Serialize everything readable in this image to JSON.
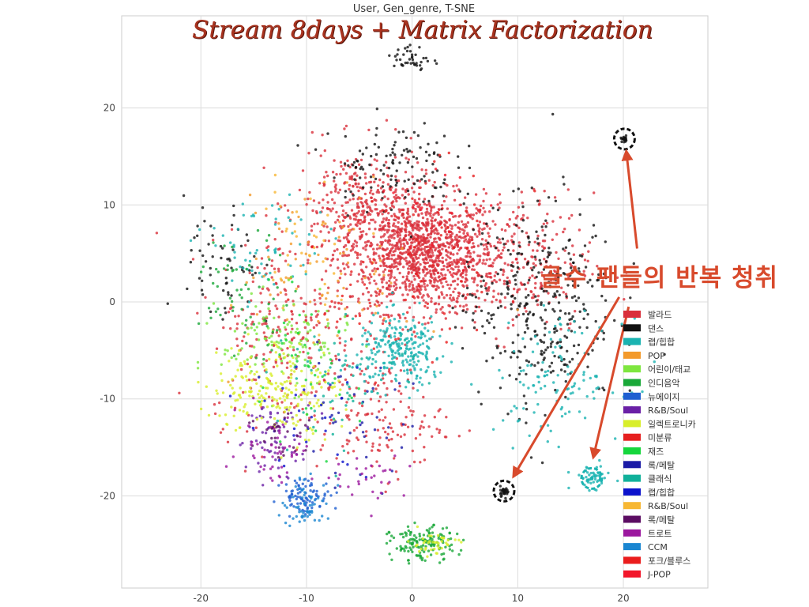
{
  "chart_data": {
    "type": "scatter",
    "title": "User, Gen_genre, T-SNE",
    "overlay_title": "Stream 8days + Matrix Factorization",
    "annotation": "골수 팬들의 반복 청취",
    "xlim": [
      -27.5,
      28
    ],
    "ylim": [
      -29.5,
      29.5
    ],
    "xticks": [
      -20,
      -10,
      0,
      10,
      20
    ],
    "yticks": [
      20,
      10,
      0,
      -10,
      -20
    ],
    "grid": true,
    "legend_placement": "lower-right",
    "series": [
      {
        "name": "발라드",
        "color": "#d92f3b",
        "clusters": [
          {
            "x": 1,
            "y": 5,
            "sx": 6,
            "sy": 5,
            "n": 1200
          },
          {
            "x": -5,
            "y": 10,
            "sx": 5,
            "sy": 5,
            "n": 300
          },
          {
            "x": 10,
            "y": 4,
            "sx": 6,
            "sy": 6,
            "n": 250
          },
          {
            "x": -12,
            "y": -3,
            "sx": 6,
            "sy": 8,
            "n": 250
          },
          {
            "x": -3,
            "y": -12,
            "sx": 5,
            "sy": 5,
            "n": 150
          }
        ]
      },
      {
        "name": "댄스",
        "color": "#111111",
        "clusters": [
          {
            "x": 12,
            "y": 0,
            "sx": 6,
            "sy": 9,
            "n": 350
          },
          {
            "x": -2,
            "y": 14,
            "sx": 5,
            "sy": 4,
            "n": 120
          },
          {
            "x": 0,
            "y": 25,
            "sx": 1.5,
            "sy": 1.2,
            "n": 40
          },
          {
            "x": 8.7,
            "y": -19.5,
            "sx": 0.4,
            "sy": 0.4,
            "n": 25
          },
          {
            "x": 20.1,
            "y": 16.8,
            "sx": 0.3,
            "sy": 0.3,
            "n": 18
          },
          {
            "x": -18,
            "y": 3,
            "sx": 3,
            "sy": 6,
            "n": 60
          }
        ]
      },
      {
        "name": "랩/힙합",
        "color": "#1ab3b1",
        "clusters": [
          {
            "x": -1,
            "y": -5,
            "sx": 3.5,
            "sy": 3,
            "n": 250
          },
          {
            "x": 14,
            "y": -8,
            "sx": 5,
            "sy": 5,
            "n": 120
          },
          {
            "x": 17,
            "y": -18,
            "sx": 1.5,
            "sy": 1,
            "n": 50
          },
          {
            "x": -14,
            "y": 5,
            "sx": 5,
            "sy": 5,
            "n": 60
          }
        ]
      },
      {
        "name": "POP",
        "color": "#f39a2b",
        "clusters": [
          {
            "x": -8,
            "y": 3,
            "sx": 7,
            "sy": 7,
            "n": 80
          }
        ]
      },
      {
        "name": "어린이/태교",
        "color": "#7ee63f",
        "clusters": [
          {
            "x": -12,
            "y": -4,
            "sx": 5,
            "sy": 4,
            "n": 120
          }
        ]
      },
      {
        "name": "인디음악",
        "color": "#19a838",
        "clusters": [
          {
            "x": 1,
            "y": -25,
            "sx": 2.5,
            "sy": 1.5,
            "n": 150
          },
          {
            "x": -16,
            "y": 1,
            "sx": 4,
            "sy": 5,
            "n": 60
          }
        ]
      },
      {
        "name": "뉴에이지",
        "color": "#1f5fd1",
        "clusters": [
          {
            "x": -10,
            "y": -20,
            "sx": 2,
            "sy": 1.5,
            "n": 80
          }
        ]
      },
      {
        "name": "R&B/Soul",
        "color": "#6a20a6",
        "clusters": [
          {
            "x": -13,
            "y": -14,
            "sx": 3,
            "sy": 3,
            "n": 60
          }
        ]
      },
      {
        "name": "일렉트로니카",
        "color": "#d8ee2a",
        "clusters": [
          {
            "x": -13,
            "y": -9,
            "sx": 5,
            "sy": 4,
            "n": 220
          },
          {
            "x": 2,
            "y": -25,
            "sx": 2,
            "sy": 1,
            "n": 40
          }
        ]
      },
      {
        "name": "미분류",
        "color": "#e61f1f",
        "clusters": [
          {
            "x": 0,
            "y": 5,
            "sx": 8,
            "sy": 8,
            "n": 60
          }
        ]
      },
      {
        "name": "재즈",
        "color": "#15d63c",
        "clusters": [
          {
            "x": -10,
            "y": -8,
            "sx": 4,
            "sy": 6,
            "n": 40
          }
        ]
      },
      {
        "name": "록/메탈",
        "color": "#1a1aa6",
        "clusters": [
          {
            "x": -6,
            "y": -12,
            "sx": 5,
            "sy": 5,
            "n": 40
          }
        ]
      },
      {
        "name": "클래식",
        "color": "#10b09a",
        "clusters": [
          {
            "x": -6,
            "y": -8,
            "sx": 6,
            "sy": 5,
            "n": 60
          }
        ]
      },
      {
        "name": "랩/힙합",
        "color": "#0b12cc",
        "clusters": [
          {
            "x": -10,
            "y": -12,
            "sx": 5,
            "sy": 5,
            "n": 30
          }
        ]
      },
      {
        "name": "R&B/Soul",
        "color": "#f7b733",
        "clusters": [
          {
            "x": -10,
            "y": 6,
            "sx": 5,
            "sy": 6,
            "n": 40
          }
        ]
      },
      {
        "name": "록/메탈",
        "color": "#5b0c62",
        "clusters": [
          {
            "x": -12,
            "y": -14,
            "sx": 3,
            "sy": 3,
            "n": 30
          }
        ]
      },
      {
        "name": "트로트",
        "color": "#9b179e",
        "clusters": [
          {
            "x": -13,
            "y": -15,
            "sx": 3,
            "sy": 3,
            "n": 50
          },
          {
            "x": -4,
            "y": -18,
            "sx": 3,
            "sy": 2,
            "n": 30
          }
        ]
      },
      {
        "name": "CCM",
        "color": "#1a86d1",
        "clusters": [
          {
            "x": -10,
            "y": -21,
            "sx": 2,
            "sy": 2,
            "n": 60
          }
        ]
      },
      {
        "name": "포크/블루스",
        "color": "#ea1c1c",
        "clusters": [
          {
            "x": -2,
            "y": 0,
            "sx": 6,
            "sy": 6,
            "n": 30
          }
        ]
      },
      {
        "name": "J-POP",
        "color": "#f2162a",
        "clusters": [
          {
            "x": 2,
            "y": 8,
            "sx": 6,
            "sy": 6,
            "n": 20
          }
        ]
      }
    ],
    "highlight_circles": [
      {
        "x": 20.1,
        "y": 16.8,
        "color": "#111111"
      },
      {
        "x": 8.7,
        "y": -19.5,
        "color": "#111111"
      },
      {
        "x": 17.0,
        "y": -18.2,
        "color": "#1ab3b1"
      }
    ],
    "arrows": [
      {
        "from": [
          21.3,
          5.5
        ],
        "to": [
          20.3,
          15.3
        ]
      },
      {
        "from": [
          19.6,
          0.5
        ],
        "to": [
          9.7,
          -17.8
        ]
      },
      {
        "from": [
          20.5,
          -0.5
        ],
        "to": [
          17.2,
          -15.8
        ]
      }
    ],
    "arrow_color": "#d84a2c"
  }
}
